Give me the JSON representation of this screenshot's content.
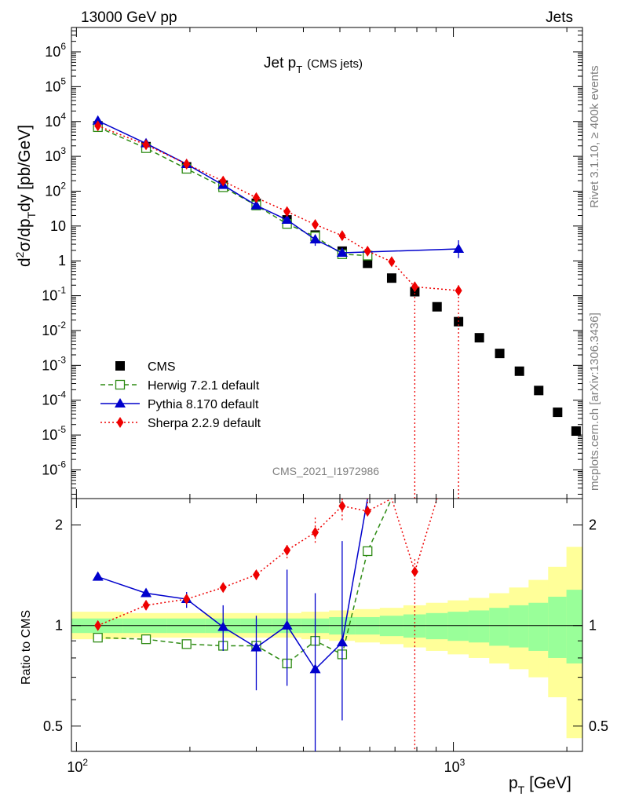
{
  "header": {
    "left_label": "13000 GeV pp",
    "right_label": "Jets"
  },
  "side_labels": {
    "rivet": "Rivet 3.1.10, ≥ 400k events",
    "mcplots": "mcplots.cern.ch [arXiv:1306.3436]"
  },
  "watermark": "CMS_2021_I1972986",
  "chart_data": [
    {
      "type": "scatter",
      "title": "Jet p_T (CMS jets)",
      "title_main": "Jet p",
      "title_sub": "T",
      "title_suffix": "(CMS jets)",
      "ylabel": "d²σ/dp_T dy [pb/GeV]",
      "xlabel": "p_T [GeV]",
      "xscale": "log",
      "yscale": "log",
      "xlim": [
        97,
        2200
      ],
      "ylim": [
        1.5e-07,
        5000000.0
      ],
      "y_tick_labels": [
        "10^-6",
        "10^-5",
        "10^-4",
        "10^-3",
        "10^-2",
        "10^-1",
        "1",
        "10",
        "10^2",
        "10^3",
        "10^4",
        "10^5",
        "10^6"
      ],
      "x_tick_labels": [
        "10^2",
        "10^3"
      ],
      "legend_position": "bottom-left",
      "series": [
        {
          "name": "CMS",
          "color": "#000000",
          "marker": "filled-square",
          "x": [
            114,
            153,
            196,
            245,
            300,
            362,
            430,
            507,
            592,
            686,
            790,
            905,
            1032,
            1172,
            1327,
            1497,
            1684,
            1890,
            2116
          ],
          "y": [
            7500,
            1900,
            500,
            150,
            45,
            15,
            5.5,
            1.9,
            0.85,
            0.32,
            0.13,
            0.048,
            0.018,
            0.0062,
            0.0022,
            0.00068,
            0.00019,
            4.5e-05,
            1.3e-05
          ]
        },
        {
          "name": "Herwig 7.2.1 default",
          "color": "#2e8b14",
          "marker": "open-square",
          "line": "dashed",
          "x": [
            114,
            153,
            196,
            245,
            300,
            362,
            430,
            507,
            592
          ],
          "y": [
            6900,
            1720,
            440,
            130,
            39,
            11.5,
            5.0,
            1.55,
            1.42
          ]
        },
        {
          "name": "Pythia 8.170 default",
          "color": "#0000cc",
          "marker": "filled-triangle",
          "line": "solid",
          "x": [
            114,
            153,
            196,
            245,
            300,
            362,
            430,
            507,
            1032
          ],
          "y": [
            10500,
            2350,
            600,
            150,
            39,
            15,
            4.1,
            1.7,
            2.2
          ],
          "err_lo": [
            10400,
            2320,
            590,
            147,
            38,
            14.6,
            2.7,
            1.7,
            1.2
          ],
          "err_hi": [
            10600,
            2380,
            610,
            153,
            40,
            15.4,
            5.5,
            2.3,
            3.9
          ]
        },
        {
          "name": "Sherpa 2.2.9 default",
          "color": "#ee0000",
          "marker": "filled-diamond",
          "line": "dotted",
          "x": [
            114,
            153,
            196,
            245,
            300,
            362,
            430,
            507,
            592,
            686,
            790,
            1032
          ],
          "y": [
            7500,
            2150,
            600,
            195,
            65,
            26,
            11,
            5.3,
            1.9,
            0.95,
            0.18,
            0.14
          ],
          "err_lo": [
            7400,
            2130,
            590,
            190,
            63,
            25,
            10.5,
            5.0,
            1.7,
            0.8,
            0.0,
            0.0
          ],
          "err_hi": [
            7600,
            2170,
            610,
            200,
            67,
            27,
            11.5,
            5.6,
            2.1,
            1.1,
            0.25,
            0.2
          ]
        }
      ]
    },
    {
      "type": "line",
      "ylabel": "Ratio to CMS",
      "xscale": "log",
      "yscale": "log",
      "xlim": [
        97,
        2200
      ],
      "ylim": [
        0.42,
        2.4
      ],
      "y_tick_labels": [
        "0.5",
        "1",
        "2"
      ],
      "reference": 1,
      "uncertainty_bands": {
        "edges": [
          97,
          133,
          174,
          220,
          272,
          330,
          395,
          468,
          548,
          638,
          737,
          846,
          966,
          1098,
          1245,
          1406,
          1583,
          1784,
          1995,
          2200
        ],
        "inner_lo": [
          0.95,
          0.95,
          0.95,
          0.95,
          0.95,
          0.95,
          0.95,
          0.94,
          0.94,
          0.93,
          0.92,
          0.91,
          0.9,
          0.89,
          0.87,
          0.86,
          0.84,
          0.8,
          0.77
        ],
        "inner_hi": [
          1.05,
          1.05,
          1.05,
          1.05,
          1.05,
          1.05,
          1.05,
          1.06,
          1.06,
          1.07,
          1.08,
          1.09,
          1.1,
          1.11,
          1.13,
          1.15,
          1.17,
          1.22,
          1.28
        ],
        "outer_lo": [
          0.91,
          0.92,
          0.92,
          0.92,
          0.92,
          0.92,
          0.91,
          0.9,
          0.89,
          0.88,
          0.86,
          0.84,
          0.82,
          0.8,
          0.77,
          0.74,
          0.7,
          0.61,
          0.46
        ],
        "outer_hi": [
          1.1,
          1.09,
          1.09,
          1.09,
          1.09,
          1.09,
          1.1,
          1.11,
          1.12,
          1.13,
          1.15,
          1.17,
          1.19,
          1.21,
          1.25,
          1.3,
          1.37,
          1.5,
          1.72
        ],
        "inner_color": "#99ff99",
        "outer_color": "#ffff99"
      },
      "series": [
        {
          "name": "Herwig 7.2.1 default",
          "color": "#2e8b14",
          "x": [
            114,
            153,
            196,
            245,
            300,
            362,
            430,
            507,
            592,
            686
          ],
          "y": [
            0.92,
            0.91,
            0.88,
            0.87,
            0.87,
            0.77,
            0.9,
            0.82,
            1.67,
            2.4
          ]
        },
        {
          "name": "Pythia 8.170 default",
          "color": "#0000cc",
          "x": [
            114,
            153,
            196,
            245,
            300,
            362,
            430,
            507,
            592
          ],
          "y": [
            1.4,
            1.25,
            1.2,
            0.99,
            0.86,
            1.0,
            0.74,
            0.89,
            2.4
          ],
          "err_lo": [
            1.39,
            1.22,
            1.13,
            0.84,
            0.64,
            0.66,
            0.3,
            0.52,
            2.4
          ],
          "err_hi": [
            1.41,
            1.28,
            1.26,
            1.15,
            1.07,
            1.47,
            1.25,
            1.79,
            2.4
          ]
        },
        {
          "name": "Sherpa 2.2.9 default",
          "color": "#ee0000",
          "x": [
            114,
            153,
            196,
            245,
            300,
            362,
            430,
            507,
            592,
            686,
            790,
            905
          ],
          "y": [
            1.0,
            1.15,
            1.2,
            1.3,
            1.42,
            1.68,
            1.9,
            2.28,
            2.2,
            2.4,
            1.45,
            2.4
          ],
          "err_lo": [
            0.99,
            1.13,
            1.18,
            1.26,
            1.37,
            1.59,
            1.77,
            2.07,
            2.2,
            2.4,
            0.3,
            2.4
          ],
          "err_hi": [
            1.01,
            1.17,
            1.22,
            1.34,
            1.47,
            1.77,
            2.13,
            2.4,
            2.4,
            2.4,
            1.6,
            2.4
          ]
        }
      ]
    }
  ]
}
